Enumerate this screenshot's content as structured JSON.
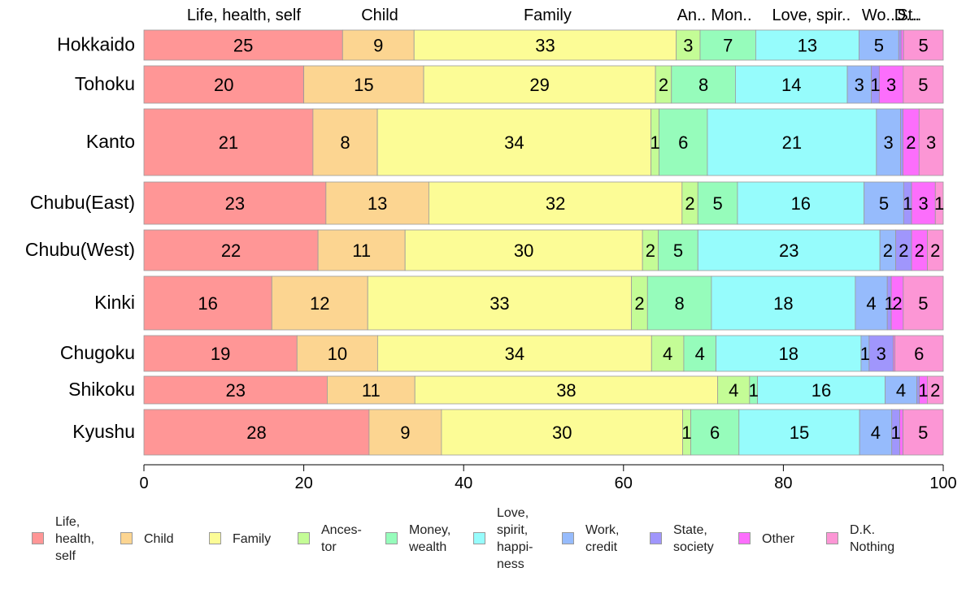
{
  "chart_data": {
    "type": "bar",
    "orientation": "horizontal",
    "stacked": "percent",
    "categories": [
      "Hokkaido",
      "Tohoku",
      "Kanto",
      "Chubu(East)",
      "Chubu(West)",
      "Kinki",
      "Chugoku",
      "Shikoku",
      "Kyushu"
    ],
    "top_labels": [
      "Life, health, self",
      "Child",
      "Family",
      "An..",
      "Mon..",
      "Love, spir..",
      "Wo..",
      "St..",
      "D..."
    ],
    "xlim": [
      0,
      100
    ],
    "xticks": [
      "0",
      "20",
      "40",
      "60",
      "80",
      "100"
    ],
    "grid": false,
    "legend_position": "bottom",
    "series": [
      {
        "name": "Life,\nhealth,\nself",
        "color": "#ff9696",
        "values": [
          25,
          20,
          21,
          23,
          22,
          16,
          19,
          23,
          28
        ]
      },
      {
        "name": "Child",
        "color": "#fcd591",
        "values": [
          9,
          15,
          8,
          13,
          11,
          12,
          10,
          11,
          9
        ]
      },
      {
        "name": "Family",
        "color": "#fcfc96",
        "values": [
          33,
          29,
          34,
          32,
          30,
          33,
          34,
          38,
          30
        ]
      },
      {
        "name": "Ances-\ntor",
        "color": "#c4fc96",
        "values": [
          3,
          2,
          1,
          2,
          2,
          2,
          4,
          4,
          1
        ]
      },
      {
        "name": "Money,\nwealth",
        "color": "#96fcbb",
        "values": [
          7,
          8,
          6,
          5,
          5,
          8,
          4,
          1,
          6
        ]
      },
      {
        "name": "Love,\nspirit,\nhappi-\nness",
        "color": "#96fcfc",
        "values": [
          13,
          14,
          21,
          16,
          23,
          18,
          18,
          16,
          15
        ]
      },
      {
        "name": "Work,\ncredit",
        "color": "#96bbfc",
        "values": [
          5,
          3,
          3,
          5,
          2,
          4,
          1,
          4,
          4
        ]
      },
      {
        "name": "State,\nsociety",
        "color": "#a096fc",
        "values": [
          0.3,
          1,
          0.3,
          1,
          2,
          0.5,
          3,
          0.3,
          1
        ]
      },
      {
        "name": "Other",
        "color": "#fc6efc",
        "values": [
          0.3,
          3,
          2,
          3,
          2,
          1.5,
          0.2,
          1,
          0.4
        ]
      },
      {
        "name": "D.K.\nNothing",
        "color": "#fc96d5",
        "values": [
          5,
          5,
          3,
          1,
          2,
          5,
          6,
          2,
          5
        ]
      }
    ],
    "data_labels": [
      [
        "25",
        "9",
        "33",
        "3",
        "7",
        "13",
        "5",
        "",
        "",
        "5"
      ],
      [
        "20",
        "15",
        "29",
        "2",
        "8",
        "14",
        "3",
        "1",
        "3",
        "5"
      ],
      [
        "21",
        "8",
        "34",
        "1",
        "6",
        "21",
        "3",
        "",
        "2",
        "3"
      ],
      [
        "23",
        "13",
        "32",
        "2",
        "5",
        "16",
        "5",
        "1",
        "3",
        "1"
      ],
      [
        "22",
        "11",
        "30",
        "2",
        "5",
        "23",
        "2",
        "2",
        "2",
        "2"
      ],
      [
        "16",
        "12",
        "33",
        "2",
        "8",
        "18",
        "4",
        "1",
        "2",
        "5"
      ],
      [
        "19",
        "10",
        "34",
        "4",
        "4",
        "18",
        "1",
        "3",
        "",
        "6"
      ],
      [
        "23",
        "11",
        "38",
        "4",
        "1",
        "16",
        "4",
        "",
        "1",
        "2"
      ],
      [
        "28",
        "9",
        "30",
        "1",
        "6",
        "15",
        "4",
        "1",
        "",
        "5"
      ]
    ]
  }
}
